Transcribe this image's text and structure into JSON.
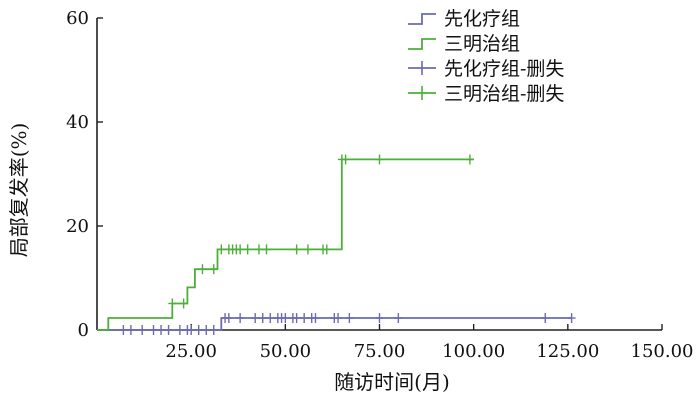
{
  "chart_data": {
    "type": "line",
    "subtype": "step",
    "xlabel": "随访时间(月)",
    "ylabel": "局部复发率(%)",
    "xlim": [
      0,
      150
    ],
    "ylim": [
      0,
      60
    ],
    "xticks": [
      "25.00",
      "50.00",
      "75.00",
      "100.00",
      "125.00",
      "150.00"
    ],
    "yticks": [
      "0",
      "20",
      "40",
      "60"
    ],
    "grid": false,
    "legend_position": "top-right",
    "legend": [
      "先化疗组",
      "三明治组",
      "先化疗组-删失",
      "三明治组-删失"
    ],
    "colors": {
      "chemo_first": "#6b6bb0",
      "sandwich": "#4caf3a"
    },
    "series": [
      {
        "name": "先化疗组",
        "step_points": [
          [
            0,
            0
          ],
          [
            33,
            0
          ],
          [
            33,
            2.3
          ],
          [
            126,
            2.3
          ]
        ],
        "censored": [
          [
            7,
            0
          ],
          [
            9,
            0
          ],
          [
            12,
            0
          ],
          [
            15,
            0
          ],
          [
            17,
            0
          ],
          [
            19,
            0
          ],
          [
            22,
            0
          ],
          [
            24,
            0
          ],
          [
            25,
            0
          ],
          [
            27,
            0
          ],
          [
            29,
            0
          ],
          [
            31,
            0
          ],
          [
            34,
            2.3
          ],
          [
            35,
            2.3
          ],
          [
            38,
            2.3
          ],
          [
            42,
            2.3
          ],
          [
            44,
            2.3
          ],
          [
            46,
            2.3
          ],
          [
            48,
            2.3
          ],
          [
            49,
            2.3
          ],
          [
            50,
            2.3
          ],
          [
            52,
            2.3
          ],
          [
            53,
            2.3
          ],
          [
            55,
            2.3
          ],
          [
            57,
            2.3
          ],
          [
            58,
            2.3
          ],
          [
            63,
            2.3
          ],
          [
            64,
            2.3
          ],
          [
            67,
            2.3
          ],
          [
            75,
            2.3
          ],
          [
            80,
            2.3
          ],
          [
            119,
            2.3
          ],
          [
            126,
            2.3
          ]
        ]
      },
      {
        "name": "三明治组",
        "step_points": [
          [
            0,
            0
          ],
          [
            3,
            0
          ],
          [
            3,
            2.3
          ],
          [
            20,
            2.3
          ],
          [
            20,
            5.1
          ],
          [
            24,
            5.1
          ],
          [
            24,
            8.2
          ],
          [
            26,
            8.2
          ],
          [
            26,
            11.7
          ],
          [
            32,
            11.7
          ],
          [
            32,
            15.5
          ],
          [
            65,
            15.5
          ],
          [
            65,
            32.8
          ],
          [
            100,
            32.8
          ]
        ],
        "censored": [
          [
            20,
            5.1
          ],
          [
            23,
            5.1
          ],
          [
            28,
            11.7
          ],
          [
            31,
            11.7
          ],
          [
            33,
            15.5
          ],
          [
            35,
            15.5
          ],
          [
            36,
            15.5
          ],
          [
            37,
            15.5
          ],
          [
            38,
            15.5
          ],
          [
            40,
            15.5
          ],
          [
            43,
            15.5
          ],
          [
            45,
            15.5
          ],
          [
            53,
            15.5
          ],
          [
            56,
            15.5
          ],
          [
            60,
            15.5
          ],
          [
            61,
            15.5
          ],
          [
            65,
            32.8
          ],
          [
            66,
            32.8
          ],
          [
            75,
            32.8
          ],
          [
            99,
            32.8
          ]
        ]
      }
    ]
  }
}
